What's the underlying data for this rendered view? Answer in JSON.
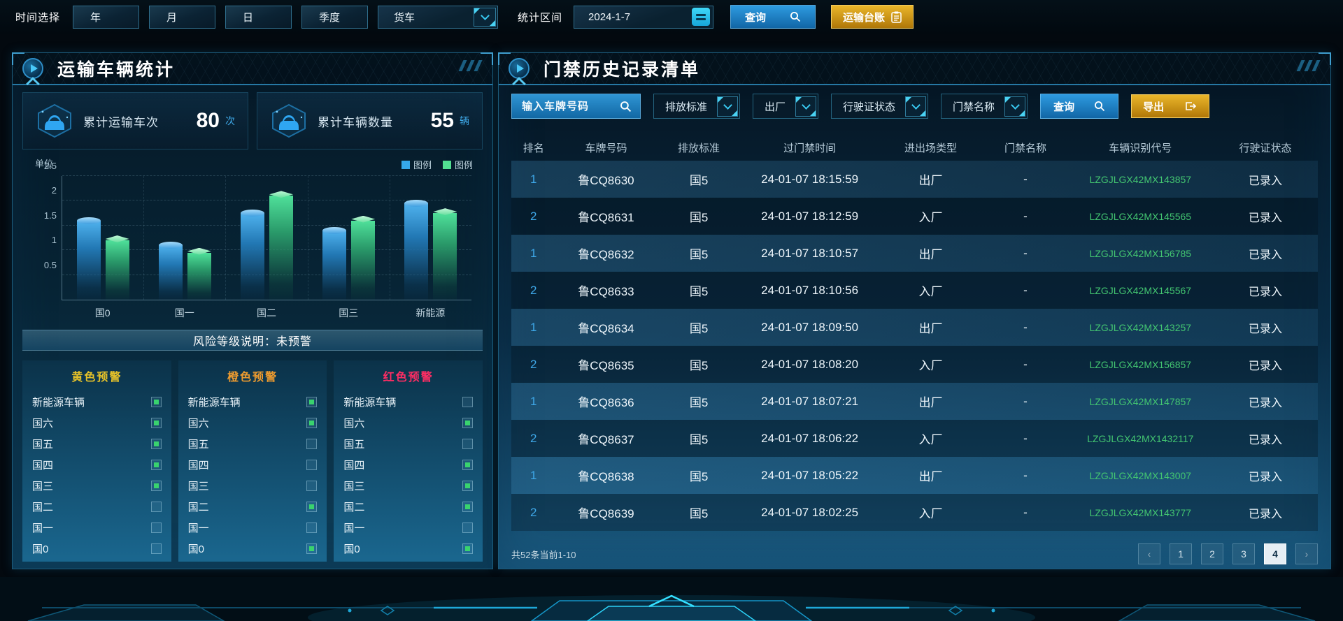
{
  "top_bar": {
    "time_label": "时间选择",
    "period_buttons": [
      "年",
      "月",
      "日",
      "季度"
    ],
    "vehicle_select_value": "货车",
    "range_label": "统计区间",
    "date_value": "2024-1-7",
    "query_label": "查询",
    "ledger_label": "运输台账"
  },
  "left_panel": {
    "title": "运输车辆统计",
    "stats": [
      {
        "label": "累计运输车次",
        "value": "80",
        "unit": "次"
      },
      {
        "label": "累计车辆数量",
        "value": "55",
        "unit": "辆"
      }
    ],
    "risk_note": "风险等级说明：未预警",
    "warning_columns": [
      {
        "title": "黄色预警",
        "color": "#e6c229",
        "items": [
          {
            "label": "新能源车辆",
            "checked": true
          },
          {
            "label": "国六",
            "checked": true
          },
          {
            "label": "国五",
            "checked": true
          },
          {
            "label": "国四",
            "checked": true
          },
          {
            "label": "国三",
            "checked": true
          },
          {
            "label": "国二",
            "checked": false
          },
          {
            "label": "国一",
            "checked": false
          },
          {
            "label": "国0",
            "checked": false
          }
        ]
      },
      {
        "title": "橙色预警",
        "color": "#ed9b2f",
        "items": [
          {
            "label": "新能源车辆",
            "checked": true
          },
          {
            "label": "国六",
            "checked": true
          },
          {
            "label": "国五",
            "checked": false
          },
          {
            "label": "国四",
            "checked": false
          },
          {
            "label": "国三",
            "checked": false
          },
          {
            "label": "国二",
            "checked": true
          },
          {
            "label": "国一",
            "checked": false
          },
          {
            "label": "国0",
            "checked": true
          }
        ]
      },
      {
        "title": "红色预警",
        "color": "#ff2d64",
        "items": [
          {
            "label": "新能源车辆",
            "checked": false
          },
          {
            "label": "国六",
            "checked": true
          },
          {
            "label": "国五",
            "checked": false
          },
          {
            "label": "国四",
            "checked": true
          },
          {
            "label": "国三",
            "checked": true
          },
          {
            "label": "国二",
            "checked": true
          },
          {
            "label": "国一",
            "checked": false
          },
          {
            "label": "国0",
            "checked": true
          }
        ]
      }
    ]
  },
  "chart_data": {
    "type": "bar",
    "title": "",
    "unit_label": "单位",
    "categories": [
      "国0",
      "国一",
      "国二",
      "国三",
      "新能源"
    ],
    "series": [
      {
        "name": "图例",
        "color": "#36a8ea",
        "values": [
          1.6,
          1.1,
          1.75,
          1.4,
          1.95
        ]
      },
      {
        "name": "图例",
        "color": "#52e092",
        "values": [
          1.2,
          0.95,
          2.1,
          1.6,
          1.75
        ]
      }
    ],
    "ylim": [
      0,
      2.5
    ],
    "yticks": [
      0.5,
      1,
      1.5,
      2,
      2.5
    ],
    "grid": true,
    "legend_position": "top-right"
  },
  "right_panel": {
    "title": "门禁历史记录清单",
    "filters": {
      "search_placeholder": "输入车牌号码",
      "dropdowns": [
        "排放标准",
        "出厂",
        "行驶证状态",
        "门禁名称"
      ],
      "query_label": "查询",
      "export_label": "导出"
    },
    "table": {
      "columns": [
        "排名",
        "车牌号码",
        "排放标准",
        "过门禁时间",
        "进出场类型",
        "门禁名称",
        "车辆识别代号",
        "行驶证状态"
      ],
      "rows": [
        [
          "1",
          "鲁CQ8630",
          "国5",
          "24-01-07 18:15:59",
          "出厂",
          "-",
          "LZGJLGX42MX143857",
          "已录入"
        ],
        [
          "2",
          "鲁CQ8631",
          "国5",
          "24-01-07 18:12:59",
          "入厂",
          "-",
          "LZGJLGX42MX145565",
          "已录入"
        ],
        [
          "1",
          "鲁CQ8632",
          "国5",
          "24-01-07 18:10:57",
          "出厂",
          "-",
          "LZGJLGX42MX156785",
          "已录入"
        ],
        [
          "2",
          "鲁CQ8633",
          "国5",
          "24-01-07 18:10:56",
          "入厂",
          "-",
          "LZGJLGX42MX145567",
          "已录入"
        ],
        [
          "1",
          "鲁CQ8634",
          "国5",
          "24-01-07 18:09:50",
          "出厂",
          "-",
          "LZGJLGX42MX143257",
          "已录入"
        ],
        [
          "2",
          "鲁CQ8635",
          "国5",
          "24-01-07 18:08:20",
          "入厂",
          "-",
          "LZGJLGX42MX156857",
          "已录入"
        ],
        [
          "1",
          "鲁CQ8636",
          "国5",
          "24-01-07 18:07:21",
          "出厂",
          "-",
          "LZGJLGX42MX147857",
          "已录入"
        ],
        [
          "2",
          "鲁CQ8637",
          "国5",
          "24-01-07 18:06:22",
          "入厂",
          "-",
          "LZGJLGX42MX1432117",
          "已录入"
        ],
        [
          "1",
          "鲁CQ8638",
          "国5",
          "24-01-07 18:05:22",
          "出厂",
          "-",
          "LZGJLGX42MX143007",
          "已录入"
        ],
        [
          "2",
          "鲁CQ8639",
          "国5",
          "24-01-07 18:02:25",
          "入厂",
          "-",
          "LZGJLGX42MX143777",
          "已录入"
        ]
      ]
    },
    "pagination": {
      "summary": "共52条当前1-10",
      "prev_label": "‹",
      "next_label": "›",
      "pages": [
        "1",
        "2",
        "3",
        "4"
      ],
      "active_page": "4"
    }
  },
  "icons": {
    "query": "search-icon",
    "ledger": "clipboard-icon",
    "export": "export-icon",
    "date": "calendar-icon",
    "select": "chevron-down-icon",
    "panel": "play-icon",
    "stat": "truck-icon"
  },
  "colors": {
    "accent_blue": "#2e9be0",
    "accent_gold": "#d99a14",
    "vin_green": "#43c671",
    "rank_blue": "#3fa9ea",
    "checked_green": "#39d36e"
  }
}
